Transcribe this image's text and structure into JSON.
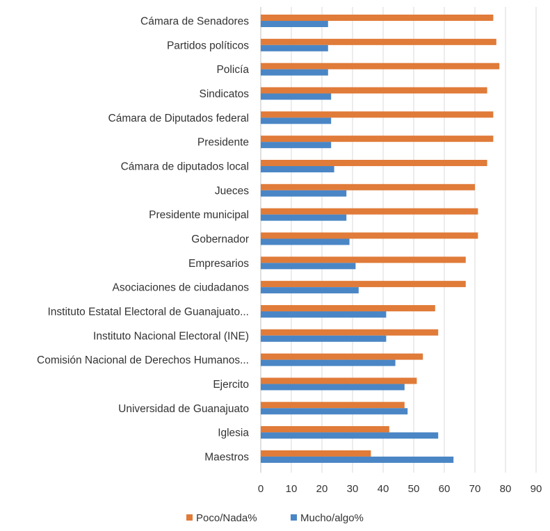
{
  "chart_data": {
    "type": "bar",
    "orientation": "horizontal",
    "categories": [
      "Cámara de Senadores",
      "Partidos políticos",
      "Policía",
      "Sindicatos",
      "Cámara de Diputados federal",
      "Presidente",
      "Cámara de diputados local",
      "Jueces",
      "Presidente municipal",
      "Gobernador",
      "Empresarios",
      "Asociaciones de ciudadanos",
      "Instituto Estatal Electoral de Guanajuato...",
      "Instituto Nacional Electoral (INE)",
      "Comisión Nacional de Derechos Humanos...",
      "Ejercito",
      "Universidad de Guanajuato",
      "Iglesia",
      "Maestros"
    ],
    "series": [
      {
        "name": "Poco/Nada%",
        "color": "#E07B39",
        "values": [
          76,
          77,
          78,
          74,
          76,
          76,
          74,
          70,
          71,
          71,
          67,
          67,
          57,
          58,
          53,
          51,
          47,
          42,
          36
        ]
      },
      {
        "name": "Mucho/algo%",
        "color": "#4A86C5",
        "values": [
          22,
          22,
          22,
          23,
          23,
          23,
          24,
          28,
          28,
          29,
          31,
          32,
          41,
          41,
          44,
          47,
          48,
          58,
          63
        ]
      }
    ],
    "x_ticks": [
      "0",
      "10",
      "20",
      "30",
      "40",
      "50",
      "60",
      "70",
      "80",
      "90"
    ],
    "xlim": [
      0,
      90
    ],
    "grid": true,
    "legend_position": "bottom"
  }
}
